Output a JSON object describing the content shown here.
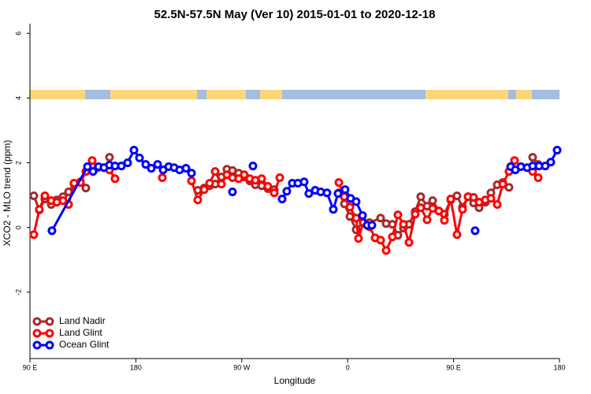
{
  "chart_data": {
    "type": "line",
    "title": "52.5N-57.5N May (Ver 10)   2015-01-01 to 2020-12-18",
    "x_label": "Longitude",
    "y_label": "XCO2 - MLO trend (ppm)",
    "xlim": [
      90,
      540
    ],
    "xticks": [
      {
        "value": 90,
        "label": "90 E"
      },
      180,
      {
        "value": 270,
        "label": "90 W"
      },
      {
        "value": 360,
        "label": "0"
      },
      {
        "value": 450,
        "label": "90 E"
      },
      {
        "value": 540,
        "label": "180"
      }
    ],
    "ylim": [
      -4.05,
      6.3
    ],
    "yticks": [
      -2,
      0,
      2,
      4,
      6
    ],
    "legend": "lower left",
    "series": [
      {
        "name": "Land Nadir",
        "color": "#a52a2a",
        "x": [
          93.3,
          98.0,
          102.7,
          108.1,
          112.8,
          118.1,
          122.8,
          127.5,
          132.9,
          137.5,
          null,
          157.6,
          null,
          232.6,
          238.0,
          242.7,
          247.4,
          252.7,
          257.4,
          262.1,
          267.4,
          272.1,
          276.8,
          281.5,
          286.9,
          292.2,
          297.6,
          null,
          352.5,
          357.2,
          361.9,
          367.2,
          373.2,
          378.6,
          388.0,
          392.7,
          398.0,
          402.7,
          407.4,
          412.1,
          417.4,
          422.1,
          427.5,
          432.2,
          437.5,
          442.2,
          447.6,
          452.9,
          457.6,
          462.3,
          467.0,
          471.7,
          477.0,
          481.7,
          487.1,
          491.8,
          497.1,
          null,
          517.2,
          521.9
        ],
        "values": [
          0.98,
          0.54,
          0.88,
          0.71,
          0.85,
          0.95,
          1.1,
          1.34,
          1.41,
          1.22,
          null,
          2.17,
          null,
          1.15,
          1.22,
          1.29,
          1.34,
          1.56,
          1.8,
          1.76,
          1.68,
          1.56,
          1.44,
          1.32,
          1.29,
          1.2,
          1.17,
          null,
          1.07,
          0.73,
          0.34,
          -0.07,
          0.17,
          0.15,
          0.29,
          0.12,
          0.1,
          -0.24,
          -0.02,
          0.1,
          0.49,
          0.95,
          0.66,
          0.83,
          0.51,
          0.41,
          0.85,
          0.98,
          0.63,
          0.95,
          0.76,
          0.61,
          0.78,
          1.07,
          1.32,
          1.39,
          1.24,
          null,
          2.17,
          1.95
        ]
      },
      {
        "name": "Land Glint",
        "color": "#ff0000",
        "x": [
          93.3,
          98.0,
          102.7,
          108.1,
          112.8,
          118.1,
          122.8,
          127.5,
          132.9,
          137.5,
          142.9,
          147.6,
          152.9,
          157.6,
          162.3,
          null,
          202.5,
          null,
          227.3,
          232.6,
          238.0,
          242.7,
          247.4,
          252.7,
          257.4,
          262.1,
          267.4,
          272.1,
          276.8,
          281.5,
          286.9,
          292.2,
          297.6,
          302.3,
          null,
          352.5,
          357.2,
          361.9,
          367.2,
          369.2,
          373.2,
          378.6,
          383.3,
          388.0,
          392.7,
          398.0,
          402.7,
          407.4,
          412.1,
          417.4,
          422.1,
          427.5,
          432.2,
          437.5,
          442.2,
          447.6,
          452.9,
          457.6,
          462.3,
          467.0,
          471.7,
          477.0,
          481.7,
          487.1,
          491.8,
          497.1,
          501.8,
          null,
          517.2,
          521.9
        ],
        "values": [
          -0.22,
          0.56,
          0.98,
          0.83,
          0.78,
          0.83,
          0.71,
          1.37,
          1.39,
          1.73,
          2.07,
          1.85,
          1.85,
          1.78,
          1.51,
          null,
          1.54,
          null,
          1.44,
          0.85,
          1.17,
          1.37,
          1.73,
          1.34,
          1.63,
          1.54,
          1.51,
          1.63,
          1.51,
          1.46,
          1.51,
          1.27,
          1.07,
          1.54,
          null,
          1.39,
          0.95,
          0.63,
          0.29,
          -0.34,
          0.15,
          0.02,
          -0.32,
          -0.39,
          -0.71,
          -0.29,
          0.39,
          0.1,
          -0.46,
          0.41,
          0.61,
          0.24,
          0.59,
          0.51,
          0.22,
          0.88,
          -0.22,
          0.56,
          0.95,
          0.93,
          0.78,
          0.85,
          0.9,
          0.71,
          1.34,
          1.73,
          2.07,
          null,
          1.73,
          1.54
        ]
      },
      {
        "name": "Ocean Glint",
        "color": "#0000ff",
        "x": [
          108.7,
          138.9,
          143.6,
          148.3,
          152.9,
          157.6,
          162.3,
          167.7,
          173.0,
          178.4,
          183.1,
          188.4,
          193.1,
          198.5,
          203.2,
          207.9,
          212.5,
          217.2,
          222.6,
          227.3,
          null,
          262.1,
          null,
          279.5,
          null,
          304.3,
          308.3,
          313.0,
          317.7,
          323.0,
          327.0,
          332.4,
          337.1,
          342.4,
          347.8,
          351.8,
          357.8,
          362.5,
          367.2,
          372.6,
          376.6,
          380.6,
          null,
          468.3,
          null,
          498.5,
          502.5,
          507.2,
          512.5,
          517.2,
          522.6,
          527.9,
          532.6,
          538.0
        ],
        "values": [
          -0.1,
          1.88,
          1.73,
          1.88,
          1.85,
          1.93,
          1.9,
          1.9,
          2.0,
          2.39,
          2.15,
          1.95,
          1.83,
          1.95,
          1.78,
          1.88,
          1.85,
          1.78,
          1.83,
          1.68,
          null,
          1.1,
          null,
          1.9,
          null,
          0.88,
          1.12,
          1.37,
          1.37,
          1.41,
          1.05,
          1.15,
          1.1,
          1.07,
          0.56,
          1.05,
          1.17,
          0.9,
          0.8,
          0.37,
          0.07,
          0.07,
          null,
          -0.1,
          null,
          1.88,
          1.78,
          1.88,
          1.85,
          1.9,
          1.9,
          1.9,
          2.02,
          2.39
        ]
      }
    ]
  }
}
